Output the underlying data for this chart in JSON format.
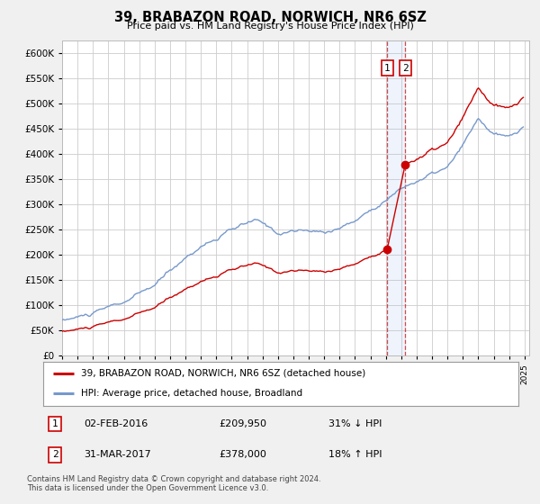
{
  "title": "39, BRABAZON ROAD, NORWICH, NR6 6SZ",
  "subtitle": "Price paid vs. HM Land Registry's House Price Index (HPI)",
  "ytick_vals": [
    0,
    50000,
    100000,
    150000,
    200000,
    250000,
    300000,
    350000,
    400000,
    450000,
    500000,
    550000,
    600000
  ],
  "ylim": [
    0,
    625000
  ],
  "hpi_line_color": "#7799cc",
  "price_line_color": "#cc0000",
  "background_color": "#f0f0f0",
  "plot_bg_color": "#ffffff",
  "grid_color": "#cccccc",
  "legend_line1": "39, BRABAZON ROAD, NORWICH, NR6 6SZ (detached house)",
  "legend_line2": "HPI: Average price, detached house, Broadland",
  "transaction1_date": "02-FEB-2016",
  "transaction1_price": "£209,950",
  "transaction1_hpi": "31% ↓ HPI",
  "transaction2_date": "31-MAR-2017",
  "transaction2_price": "£378,000",
  "transaction2_hpi": "18% ↑ HPI",
  "footer": "Contains HM Land Registry data © Crown copyright and database right 2024.\nThis data is licensed under the Open Government Licence v3.0.",
  "marker1_x": 2016.08,
  "marker1_y": 209950,
  "marker2_x": 2017.25,
  "marker2_y": 378000,
  "vline1_x": 2016.08,
  "vline2_x": 2017.25,
  "xlim_left": 1995.0,
  "xlim_right": 2025.3
}
